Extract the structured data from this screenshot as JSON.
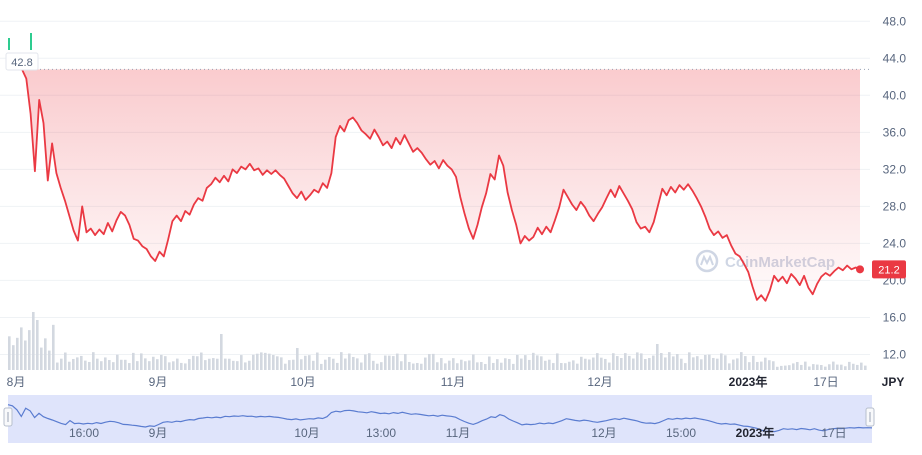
{
  "chart_data": {
    "type": "line",
    "currency": "JPY",
    "y_ticks": [
      "48.0",
      "44.0",
      "40.0",
      "36.0",
      "32.0",
      "28.0",
      "24.0",
      "20.0",
      "16.0",
      "12.0"
    ],
    "ylim": [
      10,
      49
    ],
    "x_ticks": [
      {
        "label": "8月",
        "strong": false
      },
      {
        "label": "9月",
        "strong": false
      },
      {
        "label": "10月",
        "strong": false
      },
      {
        "label": "11月",
        "strong": false
      },
      {
        "label": "12月",
        "strong": false
      },
      {
        "label": "2023年",
        "strong": true
      },
      {
        "label": "17日",
        "strong": false
      }
    ],
    "navigator_ticks": [
      {
        "label": "16:00",
        "strong": false
      },
      {
        "label": "9月",
        "strong": false
      },
      {
        "label": "10月",
        "strong": false
      },
      {
        "label": "13:00",
        "strong": false
      },
      {
        "label": "11月",
        "strong": false
      },
      {
        "label": "12月",
        "strong": false
      },
      {
        "label": "15:00",
        "strong": false
      },
      {
        "label": "2023年",
        "strong": true
      },
      {
        "label": "17日",
        "strong": false
      }
    ],
    "start_value": 42.8,
    "current_value": 21.2,
    "start_label": "42.8",
    "current_label": "21.2",
    "watermark": "CoinMarketCap",
    "price_points": [
      [
        0,
        42.8
      ],
      [
        1,
        41.8
      ],
      [
        2,
        38.0
      ],
      [
        3,
        31.8
      ],
      [
        4,
        39.5
      ],
      [
        5,
        37.0
      ],
      [
        6,
        30.8
      ],
      [
        7,
        34.8
      ],
      [
        8,
        31.6
      ],
      [
        9,
        30.0
      ],
      [
        10,
        28.6
      ],
      [
        11,
        27.0
      ],
      [
        12,
        25.4
      ],
      [
        13,
        24.3
      ],
      [
        14,
        28.0
      ],
      [
        15,
        25.2
      ],
      [
        16,
        25.6
      ],
      [
        17,
        24.9
      ],
      [
        18,
        25.5
      ],
      [
        19,
        25.0
      ],
      [
        20,
        26.2
      ],
      [
        21,
        25.3
      ],
      [
        22,
        26.5
      ],
      [
        23,
        27.4
      ],
      [
        24,
        27.0
      ],
      [
        25,
        26.0
      ],
      [
        26,
        24.5
      ],
      [
        27,
        24.3
      ],
      [
        28,
        23.7
      ],
      [
        29,
        23.4
      ],
      [
        30,
        22.6
      ],
      [
        31,
        22.1
      ],
      [
        32,
        23.1
      ],
      [
        33,
        22.6
      ],
      [
        34,
        24.4
      ],
      [
        35,
        26.4
      ],
      [
        36,
        27.0
      ],
      [
        37,
        26.4
      ],
      [
        38,
        27.5
      ],
      [
        39,
        27.1
      ],
      [
        40,
        28.2
      ],
      [
        41,
        28.9
      ],
      [
        42,
        28.6
      ],
      [
        43,
        30.0
      ],
      [
        44,
        30.4
      ],
      [
        45,
        31.1
      ],
      [
        46,
        30.6
      ],
      [
        47,
        31.3
      ],
      [
        48,
        30.7
      ],
      [
        49,
        32.0
      ],
      [
        50,
        31.6
      ],
      [
        51,
        32.3
      ],
      [
        52,
        32.0
      ],
      [
        53,
        32.6
      ],
      [
        54,
        31.9
      ],
      [
        55,
        32.1
      ],
      [
        56,
        31.4
      ],
      [
        57,
        31.9
      ],
      [
        58,
        31.5
      ],
      [
        59,
        31.9
      ],
      [
        60,
        31.4
      ],
      [
        61,
        31.0
      ],
      [
        62,
        30.2
      ],
      [
        63,
        29.4
      ],
      [
        64,
        28.9
      ],
      [
        65,
        29.6
      ],
      [
        66,
        28.7
      ],
      [
        67,
        29.2
      ],
      [
        68,
        29.8
      ],
      [
        69,
        29.5
      ],
      [
        70,
        30.5
      ],
      [
        71,
        30.0
      ],
      [
        72,
        31.6
      ],
      [
        73,
        35.5
      ],
      [
        74,
        36.7
      ],
      [
        75,
        36.1
      ],
      [
        76,
        37.3
      ],
      [
        77,
        37.6
      ],
      [
        78,
        37.0
      ],
      [
        79,
        36.2
      ],
      [
        80,
        35.8
      ],
      [
        81,
        35.3
      ],
      [
        82,
        36.3
      ],
      [
        83,
        35.5
      ],
      [
        84,
        34.6
      ],
      [
        85,
        35.0
      ],
      [
        86,
        34.3
      ],
      [
        87,
        35.4
      ],
      [
        88,
        34.7
      ],
      [
        89,
        35.7
      ],
      [
        90,
        34.8
      ],
      [
        91,
        33.9
      ],
      [
        92,
        34.3
      ],
      [
        93,
        33.8
      ],
      [
        94,
        33.1
      ],
      [
        95,
        32.5
      ],
      [
        96,
        32.9
      ],
      [
        97,
        32.1
      ],
      [
        98,
        33.0
      ],
      [
        99,
        32.4
      ],
      [
        100,
        32.0
      ],
      [
        101,
        31.2
      ],
      [
        102,
        29.0
      ],
      [
        103,
        27.2
      ],
      [
        104,
        25.6
      ],
      [
        105,
        24.5
      ],
      [
        106,
        26.0
      ],
      [
        107,
        27.9
      ],
      [
        108,
        29.4
      ],
      [
        109,
        31.5
      ],
      [
        110,
        30.9
      ],
      [
        111,
        33.5
      ],
      [
        112,
        32.4
      ],
      [
        113,
        29.5
      ],
      [
        114,
        27.6
      ],
      [
        115,
        26.0
      ],
      [
        116,
        24.0
      ],
      [
        117,
        24.8
      ],
      [
        118,
        24.3
      ],
      [
        119,
        24.7
      ],
      [
        120,
        25.7
      ],
      [
        121,
        25.0
      ],
      [
        122,
        25.8
      ],
      [
        123,
        25.2
      ],
      [
        124,
        26.5
      ],
      [
        125,
        27.9
      ],
      [
        126,
        29.8
      ],
      [
        127,
        29.0
      ],
      [
        128,
        28.2
      ],
      [
        129,
        27.6
      ],
      [
        130,
        28.5
      ],
      [
        131,
        27.9
      ],
      [
        132,
        27.0
      ],
      [
        133,
        26.4
      ],
      [
        134,
        27.2
      ],
      [
        135,
        27.9
      ],
      [
        136,
        28.9
      ],
      [
        137,
        29.8
      ],
      [
        138,
        29.0
      ],
      [
        139,
        30.2
      ],
      [
        140,
        29.4
      ],
      [
        141,
        28.6
      ],
      [
        142,
        27.7
      ],
      [
        143,
        26.3
      ],
      [
        144,
        25.6
      ],
      [
        145,
        25.8
      ],
      [
        146,
        25.2
      ],
      [
        147,
        26.3
      ],
      [
        148,
        28.1
      ],
      [
        149,
        29.9
      ],
      [
        150,
        29.2
      ],
      [
        151,
        30.1
      ],
      [
        152,
        29.5
      ],
      [
        153,
        30.3
      ],
      [
        154,
        29.8
      ],
      [
        155,
        30.4
      ],
      [
        156,
        29.7
      ],
      [
        157,
        28.9
      ],
      [
        158,
        28.0
      ],
      [
        159,
        26.9
      ],
      [
        160,
        25.6
      ],
      [
        161,
        24.9
      ],
      [
        162,
        25.3
      ],
      [
        163,
        24.6
      ],
      [
        164,
        24.9
      ],
      [
        165,
        23.8
      ],
      [
        166,
        22.9
      ],
      [
        167,
        22.6
      ],
      [
        168,
        21.8
      ],
      [
        169,
        20.9
      ],
      [
        170,
        19.3
      ],
      [
        171,
        17.9
      ],
      [
        172,
        18.4
      ],
      [
        173,
        17.8
      ],
      [
        174,
        18.9
      ],
      [
        175,
        20.5
      ],
      [
        176,
        19.9
      ],
      [
        177,
        20.4
      ],
      [
        178,
        19.7
      ],
      [
        179,
        20.7
      ],
      [
        180,
        20.2
      ],
      [
        181,
        19.5
      ],
      [
        182,
        20.5
      ],
      [
        183,
        19.2
      ],
      [
        184,
        18.5
      ],
      [
        185,
        19.6
      ],
      [
        186,
        20.4
      ],
      [
        187,
        20.8
      ],
      [
        188,
        20.5
      ],
      [
        189,
        21.0
      ],
      [
        190,
        21.4
      ],
      [
        191,
        21.1
      ],
      [
        192,
        21.6
      ],
      [
        193,
        21.2
      ],
      [
        194,
        21.4
      ],
      [
        195,
        21.2
      ]
    ]
  },
  "colors": {
    "line": "#ea3943",
    "up": "#16c784",
    "navigator_fill": "#dfe4fb",
    "navigator_line": "#5a7cd0",
    "grid": "#eff2f5"
  }
}
